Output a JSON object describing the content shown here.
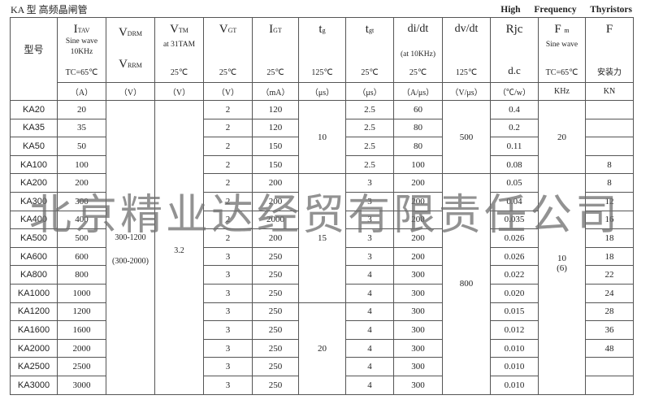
{
  "title_cn": "KA 型  高频晶闸管",
  "title_en": "High Frequency Thyristors",
  "watermark": "北京精业达经贸有限责任公司",
  "header": {
    "model": "型号",
    "itav": {
      "sym": "I",
      "sub": "TAV",
      "l1": "Sine wave",
      "l2": "10KHz",
      "cond": "TC=65℃",
      "unit": "（A）"
    },
    "vdrm": {
      "sym": "V",
      "sub": "DRM",
      "sym2": "V",
      "sub2": "RRM",
      "unit": "（V）"
    },
    "vtm": {
      "sym": "V",
      "sub": "TM",
      "l1": "at   31TAM",
      "cond": "25℃",
      "unit": "（V）"
    },
    "vgt": {
      "sym": "V",
      "sub": "GT",
      "cond": "25℃",
      "unit": "（V）"
    },
    "igt": {
      "sym": "I",
      "sub": "GT",
      "cond": "25℃",
      "unit": "（mA）"
    },
    "tg": {
      "sym": "t",
      "sub": "g",
      "cond": "125℃",
      "unit": "（μs）"
    },
    "tgt": {
      "sym": "t",
      "sub": "gt",
      "cond": "25℃",
      "unit": "（μs）"
    },
    "didt": {
      "sym": "di/dt",
      "l1": "(at 10KHz)",
      "cond": "25℃",
      "unit": "（A/μs）"
    },
    "dvdt": {
      "sym": "dv/dt",
      "cond": "125℃",
      "unit": "（V/μs）"
    },
    "rjc": {
      "sym": "Rjc",
      "cond": "d.c",
      "unit": "（℃/w）"
    },
    "fm": {
      "sym": "F",
      "sub": "m",
      "l1": "Sine wave",
      "cond": "TC=65℃",
      "unit": "KHz"
    },
    "f": {
      "sym": "F",
      "cond": "安装力",
      "unit": "KN"
    }
  },
  "rows": [
    {
      "model": "KA20",
      "itav": "20",
      "vgt": "2",
      "igt": "120",
      "tgt": "2.5",
      "didt": "60",
      "rjc": "0.4",
      "f": ""
    },
    {
      "model": "KA35",
      "itav": "35",
      "vgt": "2",
      "igt": "120",
      "tgt": "2.5",
      "didt": "80",
      "rjc": "0.2",
      "f": ""
    },
    {
      "model": "KA50",
      "itav": "50",
      "vgt": "2",
      "igt": "150",
      "tgt": "2.5",
      "didt": "80",
      "rjc": "0.11",
      "f": ""
    },
    {
      "model": "KA100",
      "itav": "100",
      "vgt": "2",
      "igt": "150",
      "tgt": "2.5",
      "didt": "100",
      "rjc": "0.08",
      "f": "8"
    },
    {
      "model": "KA200",
      "itav": "200",
      "vgt": "2",
      "igt": "200",
      "tgt": "3",
      "didt": "200",
      "rjc": "0.05",
      "f": "8"
    },
    {
      "model": "KA300",
      "itav": "300",
      "vgt": "2",
      "igt": "200",
      "tgt": "3",
      "didt": "200",
      "rjc": "0.04",
      "f": "12"
    },
    {
      "model": "KA400",
      "itav": "400",
      "vgt": "2",
      "igt": "2000",
      "tgt": "3",
      "didt": "200",
      "rjc": "0.035",
      "f": "16"
    },
    {
      "model": "KA500",
      "itav": "500",
      "vgt": "2",
      "igt": "200",
      "tgt": "3",
      "didt": "200",
      "rjc": "0.026",
      "f": "18"
    },
    {
      "model": "KA600",
      "itav": "600",
      "vgt": "3",
      "igt": "250",
      "tgt": "3",
      "didt": "200",
      "rjc": "0.026",
      "f": "18"
    },
    {
      "model": "KA800",
      "itav": "800",
      "vgt": "3",
      "igt": "250",
      "tgt": "4",
      "didt": "300",
      "rjc": "0.022",
      "f": "22"
    },
    {
      "model": "KA1000",
      "itav": "1000",
      "vgt": "3",
      "igt": "250",
      "tgt": "4",
      "didt": "300",
      "rjc": "0.020",
      "f": "24"
    },
    {
      "model": "KA1200",
      "itav": "1200",
      "vgt": "3",
      "igt": "250",
      "tgt": "4",
      "didt": "300",
      "rjc": "0.015",
      "f": "28"
    },
    {
      "model": "KA1600",
      "itav": "1600",
      "vgt": "3",
      "igt": "250",
      "tgt": "4",
      "didt": "300",
      "rjc": "0.012",
      "f": "36"
    },
    {
      "model": "KA2000",
      "itav": "2000",
      "vgt": "3",
      "igt": "250",
      "tgt": "4",
      "didt": "300",
      "rjc": "0.010",
      "f": "48"
    },
    {
      "model": "KA2500",
      "itav": "2500",
      "vgt": "3",
      "igt": "250",
      "tgt": "4",
      "didt": "300",
      "rjc": "0.010",
      "f": ""
    },
    {
      "model": "KA3000",
      "itav": "3000",
      "vgt": "3",
      "igt": "250",
      "tgt": "4",
      "didt": "300",
      "rjc": "0.010",
      "f": ""
    }
  ],
  "merged": {
    "vdrm": {
      "l1": "300-1200",
      "l2": "(300-2000)"
    },
    "vtm": "3.2",
    "tg": [
      {
        "value": "10",
        "rows": 4
      },
      {
        "value": "15",
        "rows": 7
      },
      {
        "value": "20",
        "rows": 5
      }
    ],
    "dvdt": [
      {
        "value": "500",
        "rows": 4
      },
      {
        "value": "800",
        "rows": 12
      }
    ],
    "fm": [
      {
        "value": "20",
        "rows": 4
      },
      {
        "value": "10",
        "value2": "(6)",
        "rows": 12
      }
    ]
  }
}
